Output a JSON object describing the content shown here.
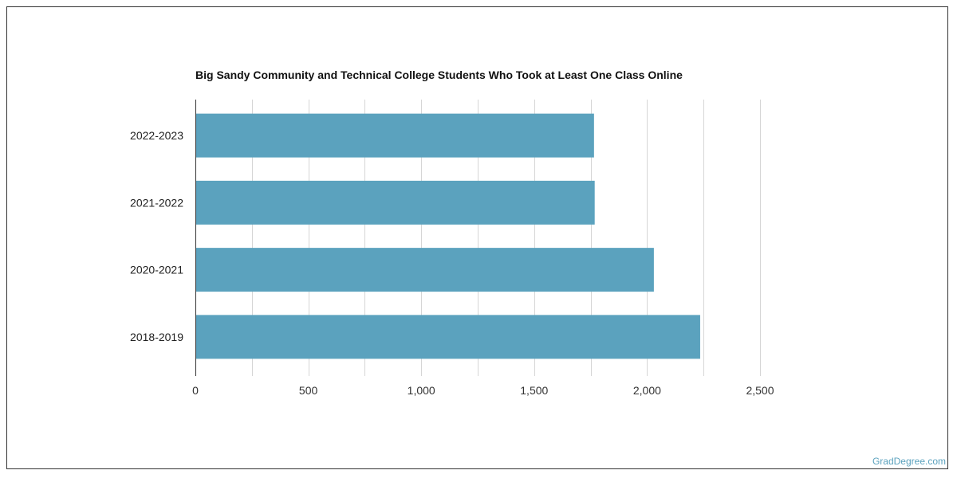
{
  "chart_data": {
    "type": "bar",
    "orientation": "horizontal",
    "title": "Big Sandy Community and Technical College Students Who Took at Least One Class Online",
    "categories": [
      "2022-2023",
      "2021-2022",
      "2020-2021",
      "2018-2019"
    ],
    "values": [
      1765,
      1768,
      2030,
      2235
    ],
    "xlim": [
      0,
      2500
    ],
    "xticks": [
      0,
      500,
      1000,
      1500,
      2000,
      2500
    ],
    "xtick_labels": [
      "0",
      "500",
      "1,000",
      "1,500",
      "2,000",
      "2,500"
    ],
    "xlabel": "",
    "ylabel": "",
    "grid": true,
    "bar_color": "#5ba2be",
    "grid_color": "#d6d6d6"
  },
  "watermark": "GradDegree.com"
}
